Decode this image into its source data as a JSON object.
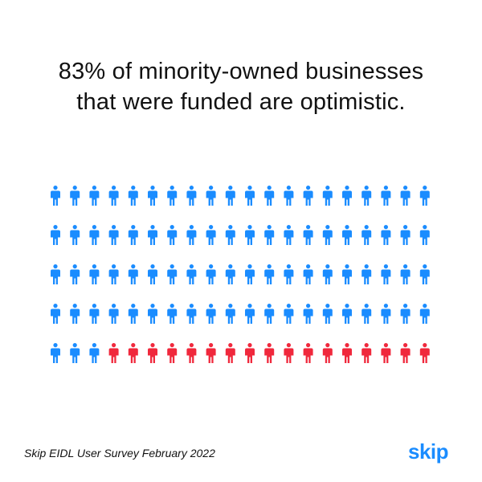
{
  "title": {
    "line1": "83% of minority-owned businesses",
    "line2": "that were funded are optimistic."
  },
  "chart_data": {
    "type": "pictogram",
    "total": 100,
    "rows": 5,
    "columns": 20,
    "series": [
      {
        "name": "",
        "value": 83,
        "color": "#1a8cff"
      },
      {
        "name": "",
        "value": 17,
        "color": "#f0283c"
      }
    ],
    "icon": "person-icon"
  },
  "footer": {
    "source": "Skip EIDL User Survey February 2022",
    "logo": "skip"
  },
  "colors": {
    "accent": "#1a8cff",
    "highlight": "#f0283c"
  }
}
